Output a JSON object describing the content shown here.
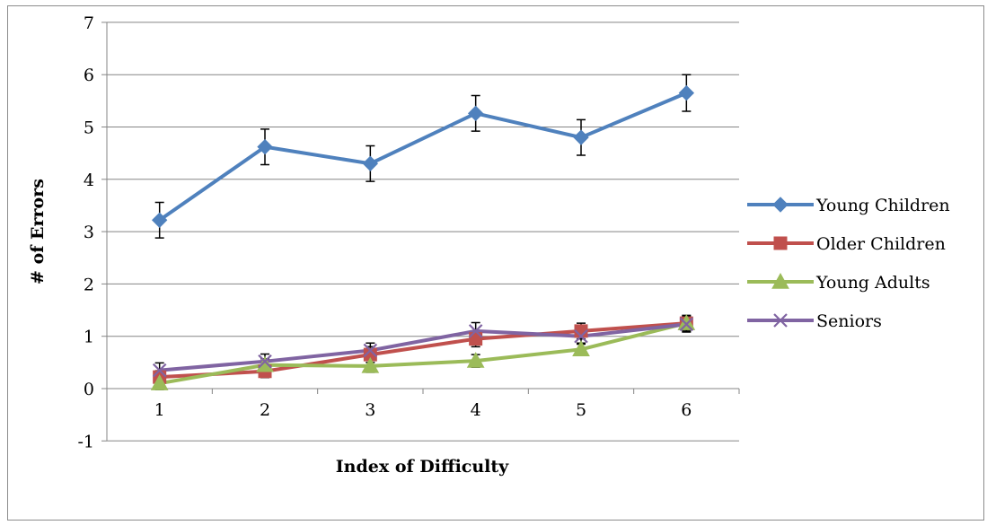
{
  "chart_data": {
    "type": "line",
    "xlabel": "Index of Difficulty",
    "ylabel": "# of Errors",
    "x": [
      1,
      2,
      3,
      4,
      5,
      6
    ],
    "ylim": [
      -1,
      7
    ],
    "yticks": [
      -1,
      0,
      1,
      2,
      3,
      4,
      5,
      6,
      7
    ],
    "grid": true,
    "legend": "right",
    "series": [
      {
        "name": "Young Children",
        "color": "#4f81bd",
        "marker": "diamond",
        "values": [
          3.22,
          4.62,
          4.3,
          5.26,
          4.8,
          5.65
        ],
        "error": [
          0.34,
          0.34,
          0.34,
          0.34,
          0.34,
          0.35
        ]
      },
      {
        "name": "Older Children",
        "color": "#c0504d",
        "marker": "square",
        "values": [
          0.22,
          0.33,
          0.65,
          0.95,
          1.1,
          1.25
        ],
        "error": [
          0.12,
          0.12,
          0.15,
          0.15,
          0.15,
          0.15
        ]
      },
      {
        "name": "Young Adults",
        "color": "#9bbb59",
        "marker": "triangle",
        "values": [
          0.1,
          0.45,
          0.43,
          0.53,
          0.75,
          1.25
        ],
        "error": [
          0.12,
          0.12,
          0.12,
          0.12,
          0.12,
          0.12
        ]
      },
      {
        "name": "Seniors",
        "color": "#8064a2",
        "marker": "x",
        "values": [
          0.35,
          0.52,
          0.73,
          1.1,
          1.0,
          1.23
        ],
        "error": [
          0.14,
          0.14,
          0.14,
          0.16,
          0.15,
          0.15
        ]
      }
    ]
  }
}
